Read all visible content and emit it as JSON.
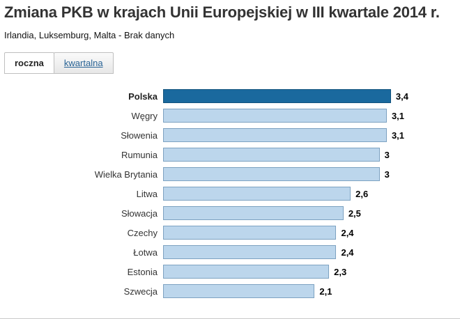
{
  "header": {
    "title": "Zmiana PKB w krajach Unii Europejskiej w III kwartale 2014 r.",
    "subtitle": "Irlandia, Luksemburg, Malta - Brak danych"
  },
  "tabs": [
    {
      "label": "roczna",
      "active": true
    },
    {
      "label": "kwartalna",
      "active": false
    }
  ],
  "chart_data": {
    "type": "bar",
    "orientation": "horizontal",
    "title": "Zmiana PKB w krajach Unii Europejskiej w III kwartale 2014 r.",
    "categories": [
      "Polska",
      "Węgry",
      "Słowenia",
      "Rumunia",
      "Wielka Brytania",
      "Litwa",
      "Słowacja",
      "Czechy",
      "Łotwa",
      "Estonia",
      "Szwecja"
    ],
    "values": [
      3.4,
      3.1,
      3.1,
      3,
      3,
      2.6,
      2.5,
      2.4,
      2.4,
      2.3,
      2.1
    ],
    "value_labels": [
      "3,4",
      "3,1",
      "3,1",
      "3",
      "3",
      "2,6",
      "2,5",
      "2,4",
      "2,4",
      "2,3",
      "2,1"
    ],
    "highlight_category": "Polska",
    "xlim": [
      0,
      3.4
    ],
    "grid": false,
    "legend": "none",
    "colors": {
      "highlight_bar": "#1a699e",
      "default_bar": "#bcd6ec",
      "bar_border": "#7da2c1",
      "tab_link": "#2a6496"
    }
  }
}
